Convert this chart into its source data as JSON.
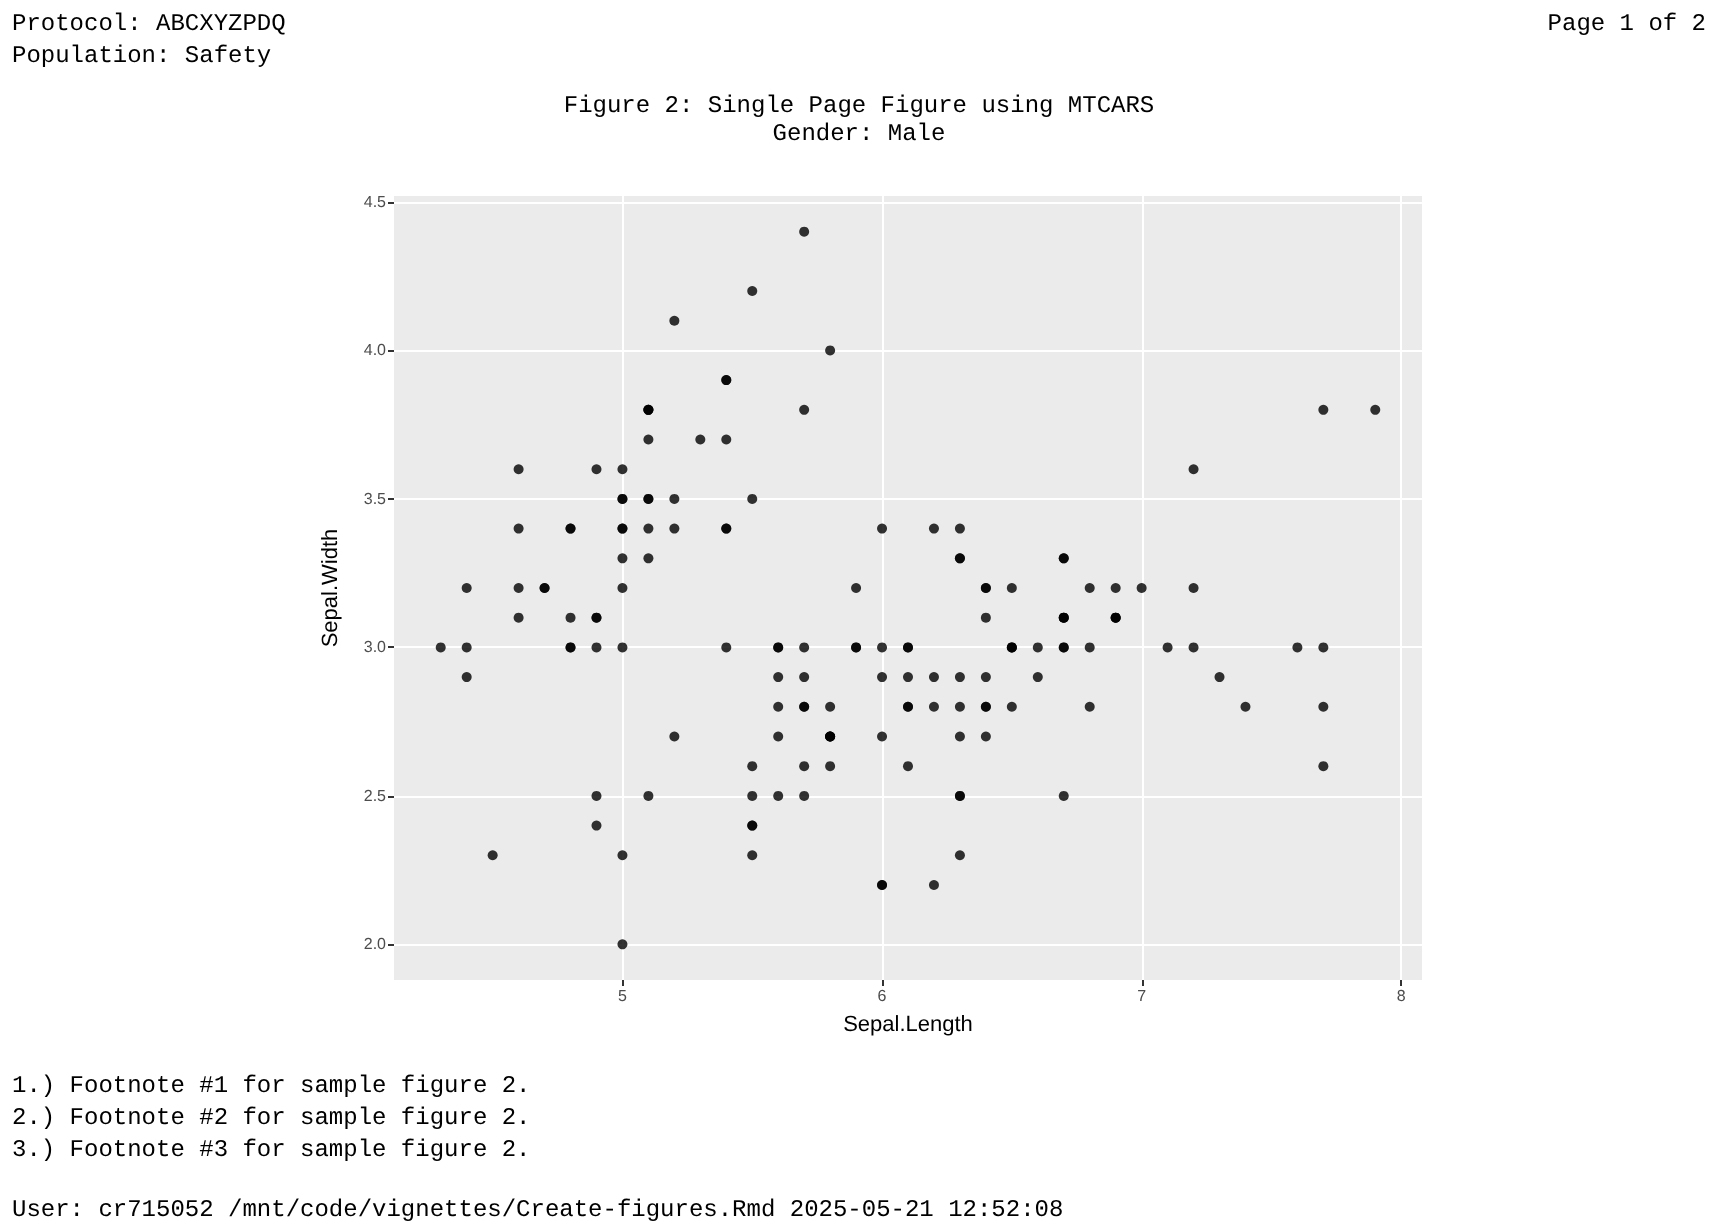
{
  "chart_data": {
    "type": "scatter",
    "title": "Figure 2: Single Page Figure using MTCARS",
    "subtitle": "Gender: Male",
    "xlabel": "Sepal.Length",
    "ylabel": "Sepal.Width",
    "annotations": [
      "Protocol: ABCXYZPDQ",
      "Population: Safety",
      "Page 1 of 2",
      "1.) Footnote #1 for sample figure 2.",
      "2.) Footnote #2 for sample figure 2.",
      "3.) Footnote #3 for sample figure 2.",
      "User: cr715052 /mnt/code/vignettes/Create-figures.Rmd 2025-05-21 12:52:08"
    ],
    "x": [
      5.1,
      4.9,
      4.7,
      4.6,
      5.0,
      5.4,
      4.6,
      5.0,
      4.4,
      4.9,
      5.4,
      4.8,
      4.8,
      4.3,
      5.8,
      5.7,
      5.4,
      5.1,
      5.7,
      5.1,
      5.4,
      5.1,
      4.6,
      5.1,
      4.8,
      5.0,
      5.0,
      5.2,
      5.2,
      4.7,
      4.8,
      5.4,
      5.2,
      5.5,
      4.9,
      5.0,
      5.5,
      4.9,
      4.4,
      5.1,
      5.0,
      4.5,
      4.4,
      5.0,
      5.1,
      4.8,
      5.1,
      4.6,
      5.3,
      5.0,
      7.0,
      6.4,
      6.9,
      5.5,
      6.5,
      5.7,
      6.3,
      4.9,
      6.6,
      5.2,
      5.0,
      5.9,
      6.0,
      6.1,
      5.6,
      6.7,
      5.6,
      5.8,
      6.2,
      5.6,
      5.9,
      6.1,
      6.3,
      6.1,
      6.4,
      6.6,
      6.8,
      6.7,
      6.0,
      5.7,
      5.5,
      5.5,
      5.8,
      6.0,
      5.4,
      6.0,
      6.7,
      6.3,
      5.6,
      5.5,
      5.5,
      6.1,
      5.8,
      5.0,
      5.6,
      5.7,
      5.7,
      6.2,
      5.1,
      5.7,
      6.3,
      5.8,
      7.1,
      6.3,
      6.5,
      7.6,
      4.9,
      7.3,
      6.7,
      7.2,
      6.5,
      6.4,
      6.8,
      5.7,
      5.8,
      6.4,
      6.5,
      7.7,
      7.7,
      6.0,
      6.9,
      5.6,
      7.7,
      6.3,
      6.7,
      7.2,
      6.2,
      6.1,
      6.4,
      7.2,
      7.4,
      7.9,
      6.4,
      6.3,
      6.1,
      7.7,
      6.3,
      6.4,
      6.0,
      6.9,
      6.7,
      6.9,
      5.8,
      6.8,
      6.7,
      6.7,
      6.3,
      6.5,
      6.2,
      5.9
    ],
    "values": [
      3.5,
      3.0,
      3.2,
      3.1,
      3.6,
      3.9,
      3.4,
      3.4,
      2.9,
      3.1,
      3.7,
      3.4,
      3.0,
      3.0,
      4.0,
      4.4,
      3.9,
      3.5,
      3.8,
      3.8,
      3.4,
      3.7,
      3.6,
      3.3,
      3.4,
      3.0,
      3.4,
      3.5,
      3.4,
      3.2,
      3.1,
      3.4,
      4.1,
      4.2,
      3.1,
      3.2,
      3.5,
      3.6,
      3.0,
      3.4,
      3.5,
      2.3,
      3.2,
      3.5,
      3.8,
      3.0,
      3.8,
      3.2,
      3.7,
      3.3,
      3.2,
      3.2,
      3.1,
      2.3,
      2.8,
      2.8,
      3.3,
      2.4,
      2.9,
      2.7,
      2.0,
      3.0,
      2.2,
      2.9,
      2.9,
      3.1,
      3.0,
      2.7,
      2.2,
      2.5,
      3.2,
      2.8,
      2.5,
      2.8,
      2.9,
      3.0,
      2.8,
      3.0,
      2.9,
      2.6,
      2.4,
      2.4,
      2.7,
      2.7,
      3.0,
      3.4,
      3.1,
      2.3,
      3.0,
      2.5,
      2.6,
      3.0,
      2.6,
      2.3,
      2.7,
      3.0,
      2.9,
      2.9,
      2.5,
      2.8,
      3.3,
      2.7,
      3.0,
      2.9,
      3.0,
      3.0,
      2.5,
      2.9,
      2.5,
      3.6,
      3.2,
      2.7,
      3.0,
      2.5,
      2.8,
      3.2,
      3.0,
      3.8,
      2.6,
      2.2,
      3.2,
      2.8,
      2.8,
      2.7,
      3.3,
      3.2,
      2.8,
      3.0,
      2.8,
      3.0,
      2.8,
      3.8,
      2.8,
      2.8,
      2.6,
      3.0,
      3.4,
      3.1,
      3.0,
      3.1,
      3.1,
      3.1,
      2.7,
      3.2,
      3.3,
      3.0,
      2.5,
      3.0,
      3.4,
      3.0
    ],
    "color": "#000000",
    "marker": "circle",
    "grid": true,
    "xlim": [
      4.12,
      8.08
    ],
    "xticks": [
      5,
      6,
      7,
      8
    ],
    "ylim": [
      1.88,
      4.52
    ],
    "yticks": [
      {
        "value": 2,
        "label": "2.0"
      },
      2.5,
      {
        "value": 3,
        "label": "3.0"
      },
      3.5,
      {
        "value": 4,
        "label": "4.0"
      },
      4.5
    ]
  }
}
